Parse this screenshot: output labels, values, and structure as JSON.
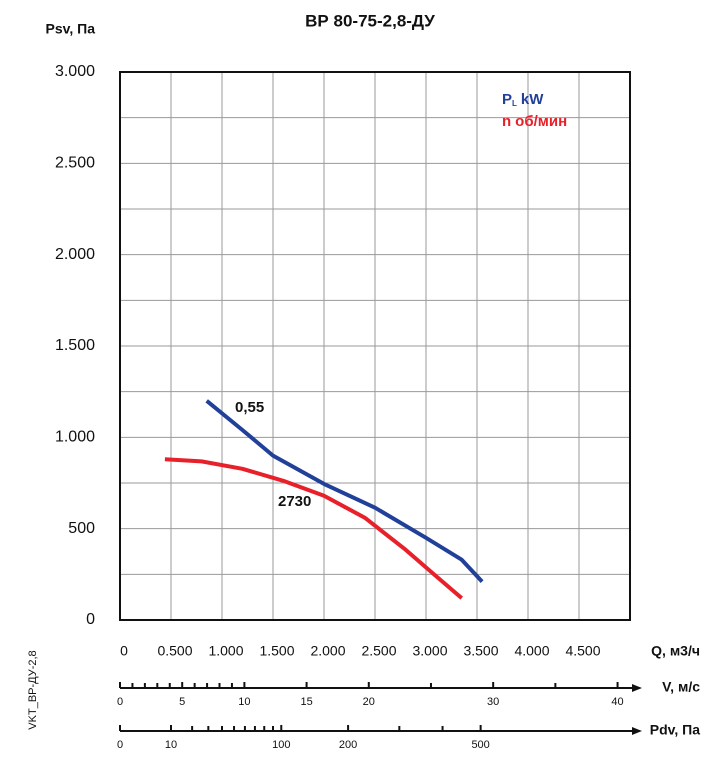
{
  "chart_data": {
    "type": "line",
    "title": "ВР 80-75-2,8-ДУ",
    "y_label": "Psv, Па",
    "x_label": "Q, м3/ч",
    "side_note": "VKT_ВР-ДУ-2,8",
    "xlim": [
      0,
      5000
    ],
    "xticks": [
      0,
      {
        "value": 500,
        "label": "0.500"
      },
      {
        "value": 1000,
        "label": "1.000"
      },
      {
        "value": 1500,
        "label": "1.500"
      },
      {
        "value": 2000,
        "label": "2.000"
      },
      {
        "value": 2500,
        "label": "2.500"
      },
      {
        "value": 3000,
        "label": "3.000"
      },
      {
        "value": 3500,
        "label": "3.500"
      },
      {
        "value": 4000,
        "label": "4.000"
      },
      {
        "value": 4500,
        "label": "4.500"
      }
    ],
    "ylim": [
      0,
      3000
    ],
    "yticks": [
      0,
      500,
      {
        "value": 1000,
        "label": "1.000"
      },
      {
        "value": 1500,
        "label": "1.500"
      },
      {
        "value": 2000,
        "label": "2.000"
      },
      {
        "value": 2500,
        "label": "2.500"
      },
      {
        "value": 3000,
        "label": "3.000"
      }
    ],
    "y_minor": [
      250,
      750,
      1250,
      1750,
      2250,
      2750
    ],
    "grid": true,
    "legend": "upper right",
    "series": [
      {
        "name": "P",
        "subscript": "L",
        "unit": "kW",
        "label": "0,55",
        "color": "#21409a",
        "x": [
          850,
          1200,
          1500,
          2000,
          2500,
          3000,
          3350,
          3550
        ],
        "values": [
          1200,
          1040,
          900,
          745,
          615,
          450,
          330,
          210
        ]
      },
      {
        "name": "n",
        "unit": "об/мин",
        "label": "2730",
        "color": "#e8202a",
        "x": [
          440,
          800,
          1200,
          1600,
          2000,
          2400,
          2800,
          3100,
          3350
        ],
        "values": [
          880,
          868,
          828,
          762,
          680,
          560,
          385,
          240,
          120
        ]
      }
    ],
    "extra_axes": [
      {
        "label": "V, м/с",
        "scale": "linear",
        "lim": [
          0,
          41
        ],
        "ticks": [
          0,
          5,
          10,
          15,
          20,
          30,
          40
        ],
        "minor_ticks": [
          1,
          2,
          3,
          4,
          6,
          7,
          8,
          9,
          25,
          35
        ]
      },
      {
        "label": "Pdv, Па",
        "scale": "sqrt",
        "lim": [
          0,
          1000
        ],
        "ticks": [
          0,
          10,
          100,
          200,
          500
        ],
        "minor_ticks": [
          20,
          30,
          40,
          50,
          60,
          70,
          80,
          90,
          300,
          400
        ]
      }
    ]
  }
}
